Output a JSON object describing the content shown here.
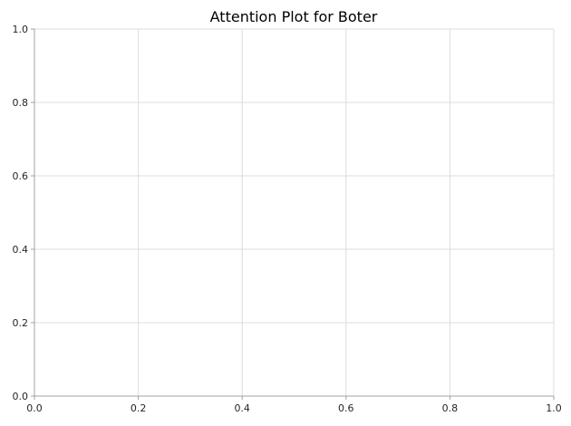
{
  "chart_data": {
    "type": "line",
    "title": "Attention Plot for Boter",
    "xlabel": "",
    "ylabel": "",
    "xlim": [
      0.0,
      1.0
    ],
    "ylim": [
      0.0,
      1.0
    ],
    "x_ticks": [
      "0.0",
      "0.2",
      "0.4",
      "0.6",
      "0.8",
      "1.0"
    ],
    "y_ticks": [
      "0.0",
      "0.2",
      "0.4",
      "0.6",
      "0.8",
      "1.0"
    ],
    "grid": true,
    "series": []
  }
}
